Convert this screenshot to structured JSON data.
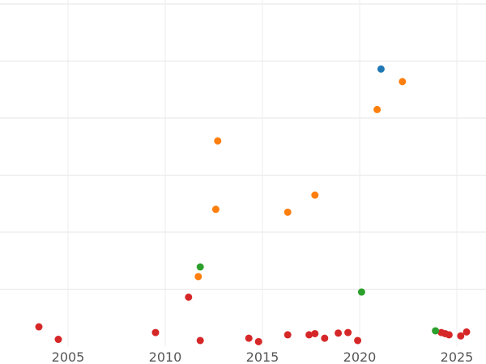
{
  "chart_data": {
    "type": "scatter",
    "title": "",
    "xlabel": "",
    "ylabel": "",
    "xlim": [
      2001.5,
      2026.5
    ],
    "ylim": [
      0,
      6.1
    ],
    "x_ticks": [
      2005,
      2010,
      2015,
      2020,
      2025
    ],
    "x_tick_labels": [
      "2005",
      "2010",
      "2015",
      "2020",
      "2025"
    ],
    "y_gridlines": [
      1,
      2,
      3,
      4,
      5,
      6
    ],
    "grid": true,
    "legend": "none",
    "series": [
      {
        "color": "#d62728",
        "points": [
          [
            2003.5,
            0.34
          ],
          [
            2004.5,
            0.12
          ],
          [
            2009.5,
            0.24
          ],
          [
            2011.2,
            0.86
          ],
          [
            2011.8,
            0.1
          ],
          [
            2014.3,
            0.14
          ],
          [
            2014.8,
            0.08
          ],
          [
            2016.3,
            0.2
          ],
          [
            2017.4,
            0.2
          ],
          [
            2017.7,
            0.22
          ],
          [
            2018.2,
            0.14
          ],
          [
            2018.9,
            0.23
          ],
          [
            2019.4,
            0.24
          ],
          [
            2019.9,
            0.1
          ],
          [
            2024.2,
            0.24
          ],
          [
            2024.4,
            0.22
          ],
          [
            2024.6,
            0.2
          ],
          [
            2025.2,
            0.18
          ],
          [
            2025.5,
            0.25
          ]
        ]
      },
      {
        "color": "#ff7f0e",
        "points": [
          [
            2011.7,
            1.22
          ],
          [
            2012.6,
            2.4
          ],
          [
            2012.7,
            3.6
          ],
          [
            2016.3,
            2.35
          ],
          [
            2017.7,
            2.65
          ],
          [
            2020.9,
            4.15
          ],
          [
            2022.2,
            4.64
          ]
        ]
      },
      {
        "color": "#2ca02c",
        "points": [
          [
            2011.8,
            1.39
          ],
          [
            2020.1,
            0.95
          ],
          [
            2023.9,
            0.27
          ]
        ]
      },
      {
        "color": "#1f77b4",
        "points": [
          [
            2021.1,
            4.86
          ]
        ]
      }
    ]
  }
}
